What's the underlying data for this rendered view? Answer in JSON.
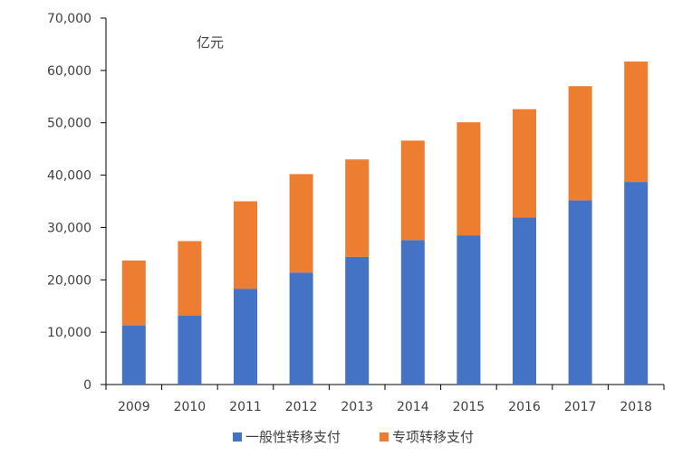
{
  "chart_data": {
    "type": "bar",
    "stacked": true,
    "categories": [
      "2009",
      "2010",
      "2011",
      "2012",
      "2013",
      "2014",
      "2015",
      "2016",
      "2017",
      "2018"
    ],
    "series": [
      {
        "name": "一般性转移支付",
        "color": "#4472C4",
        "values": [
          11300,
          13200,
          18300,
          21400,
          24400,
          27600,
          28500,
          31900,
          35200,
          38700
        ]
      },
      {
        "name": "专项转移支付",
        "color": "#ED7D31",
        "values": [
          12400,
          14200,
          16700,
          18800,
          18600,
          19000,
          21600,
          20700,
          21800,
          23000
        ]
      }
    ],
    "unit_label": "亿元",
    "y_ticks": [
      "0",
      "10,000",
      "20,000",
      "30,000",
      "40,000",
      "50,000",
      "60,000",
      "70,000"
    ],
    "ylim": [
      0,
      70000
    ],
    "ystep": 10000,
    "grid": false,
    "legend_position": "bottom"
  }
}
